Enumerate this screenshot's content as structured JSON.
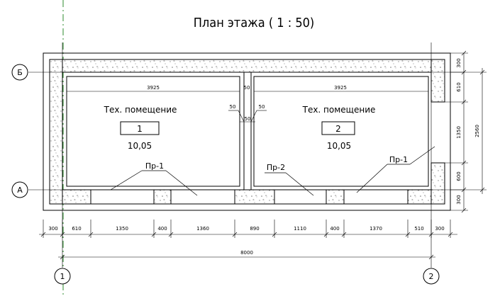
{
  "title": "План этажа ( 1 : 50)",
  "axes": {
    "a": "А",
    "b": "Б",
    "one": "1",
    "two": "2"
  },
  "rooms": [
    {
      "name": "Тех. помещение",
      "number": "1",
      "area": "10,05",
      "width_dim": "3925"
    },
    {
      "name": "Тех. помещение",
      "number": "2",
      "area": "10,05",
      "width_dim": "3925"
    }
  ],
  "openings": {
    "left": "Пр-1",
    "middle": "Пр-2",
    "right": "Пр-1"
  },
  "partition_dims": {
    "top": "50",
    "left": "50",
    "right": "50",
    "center": "50"
  },
  "bottom_dims": [
    "300",
    "610",
    "1350",
    "400",
    "1360",
    "890",
    "1110",
    "400",
    "1370",
    "510",
    "300"
  ],
  "overall_dim": "8000",
  "right_dims": [
    "300",
    "610",
    "1350",
    "600",
    "300"
  ],
  "right_overall": "2560",
  "colors": {
    "line": "#000000",
    "guide": "#2e8b2e",
    "wall_fill": "#ffffff",
    "speck": "#888888"
  }
}
